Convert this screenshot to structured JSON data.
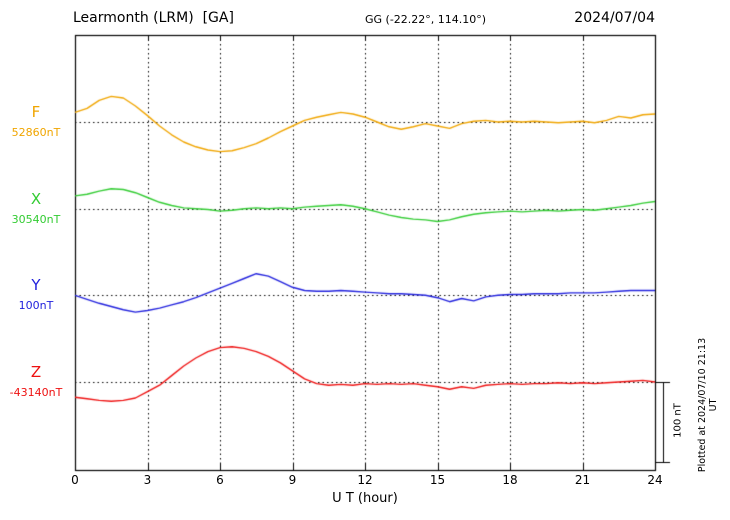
{
  "header": {
    "station": "Learmonth (LRM)  [GA]",
    "coordinates": "GG (-22.22°, 114.10°)",
    "date": "2024/07/04"
  },
  "x_axis": {
    "label": "U T (hour)",
    "tick_labels": [
      "0",
      "3",
      "6",
      "9",
      "12",
      "15",
      "18",
      "21",
      "24"
    ]
  },
  "scale_bar": {
    "label": "100 nT"
  },
  "plotted_note": "Plotted at 2024/07/10 21:13 UT",
  "colors": {
    "frame": "#000000",
    "background": "#ffffff"
  },
  "chart_data": {
    "type": "line",
    "title": "Learmonth (LRM) [GA] magnetogram, 2024/07/04",
    "xlabel": "U T (hour)",
    "xlim": [
      0,
      24
    ],
    "x_tick_hours": [
      0,
      3,
      6,
      9,
      12,
      15,
      18,
      21,
      24
    ],
    "x_step_hours": 0.5,
    "grid": "dotted vertical lines every 3 h; dotted horizontal baseline per trace",
    "legend_position": "left margin labels",
    "scale_bar_nT": 100,
    "series": [
      {
        "name": "F",
        "baseline_label": "52860nT",
        "color": "#f0a500",
        "values_nT_rel_baseline": [
          12,
          17,
          27,
          32,
          30,
          20,
          8,
          -5,
          -16,
          -25,
          -31,
          -35,
          -37,
          -36,
          -32,
          -27,
          -20,
          -12,
          -5,
          2,
          6,
          9,
          12,
          10,
          6,
          0,
          -6,
          -9,
          -6,
          -2,
          -5,
          -8,
          -2,
          1,
          2,
          0,
          1,
          0,
          1,
          0,
          -1,
          0,
          1,
          -1,
          2,
          7,
          5,
          9,
          10
        ]
      },
      {
        "name": "X",
        "baseline_label": "30540nT",
        "color": "#33cc33",
        "values_nT_rel_baseline": [
          16,
          18,
          22,
          25,
          24,
          20,
          14,
          8,
          4,
          1,
          0,
          -1,
          -3,
          -2,
          0,
          1,
          0,
          1,
          0,
          2,
          3,
          4,
          5,
          3,
          0,
          -4,
          -8,
          -11,
          -13,
          -14,
          -16,
          -14,
          -10,
          -7,
          -5,
          -4,
          -3,
          -4,
          -3,
          -2,
          -3,
          -2,
          -1,
          -2,
          0,
          2,
          4,
          7,
          9
        ]
      },
      {
        "name": "Y",
        "baseline_label": "100nT",
        "color": "#2222dd",
        "values_nT_rel_baseline": [
          0,
          -5,
          -10,
          -14,
          -18,
          -21,
          -19,
          -16,
          -12,
          -8,
          -3,
          3,
          9,
          15,
          21,
          27,
          24,
          17,
          10,
          6,
          5,
          5,
          6,
          5,
          4,
          3,
          2,
          2,
          1,
          0,
          -3,
          -8,
          -4,
          -7,
          -2,
          0,
          1,
          1,
          2,
          2,
          2,
          3,
          3,
          3,
          4,
          5,
          6,
          6,
          6
        ]
      },
      {
        "name": "Z",
        "baseline_label": "-43140nT",
        "color": "#ee1111",
        "values_nT_rel_baseline": [
          -19,
          -21,
          -23,
          -24,
          -23,
          -20,
          -12,
          -4,
          8,
          20,
          30,
          38,
          43,
          44,
          42,
          38,
          32,
          24,
          14,
          4,
          -2,
          -4,
          -3,
          -4,
          -2,
          -3,
          -2,
          -3,
          -2,
          -4,
          -6,
          -9,
          -6,
          -8,
          -4,
          -3,
          -2,
          -3,
          -2,
          -2,
          -1,
          -2,
          -1,
          -2,
          -1,
          0,
          1,
          2,
          0
        ]
      }
    ]
  }
}
